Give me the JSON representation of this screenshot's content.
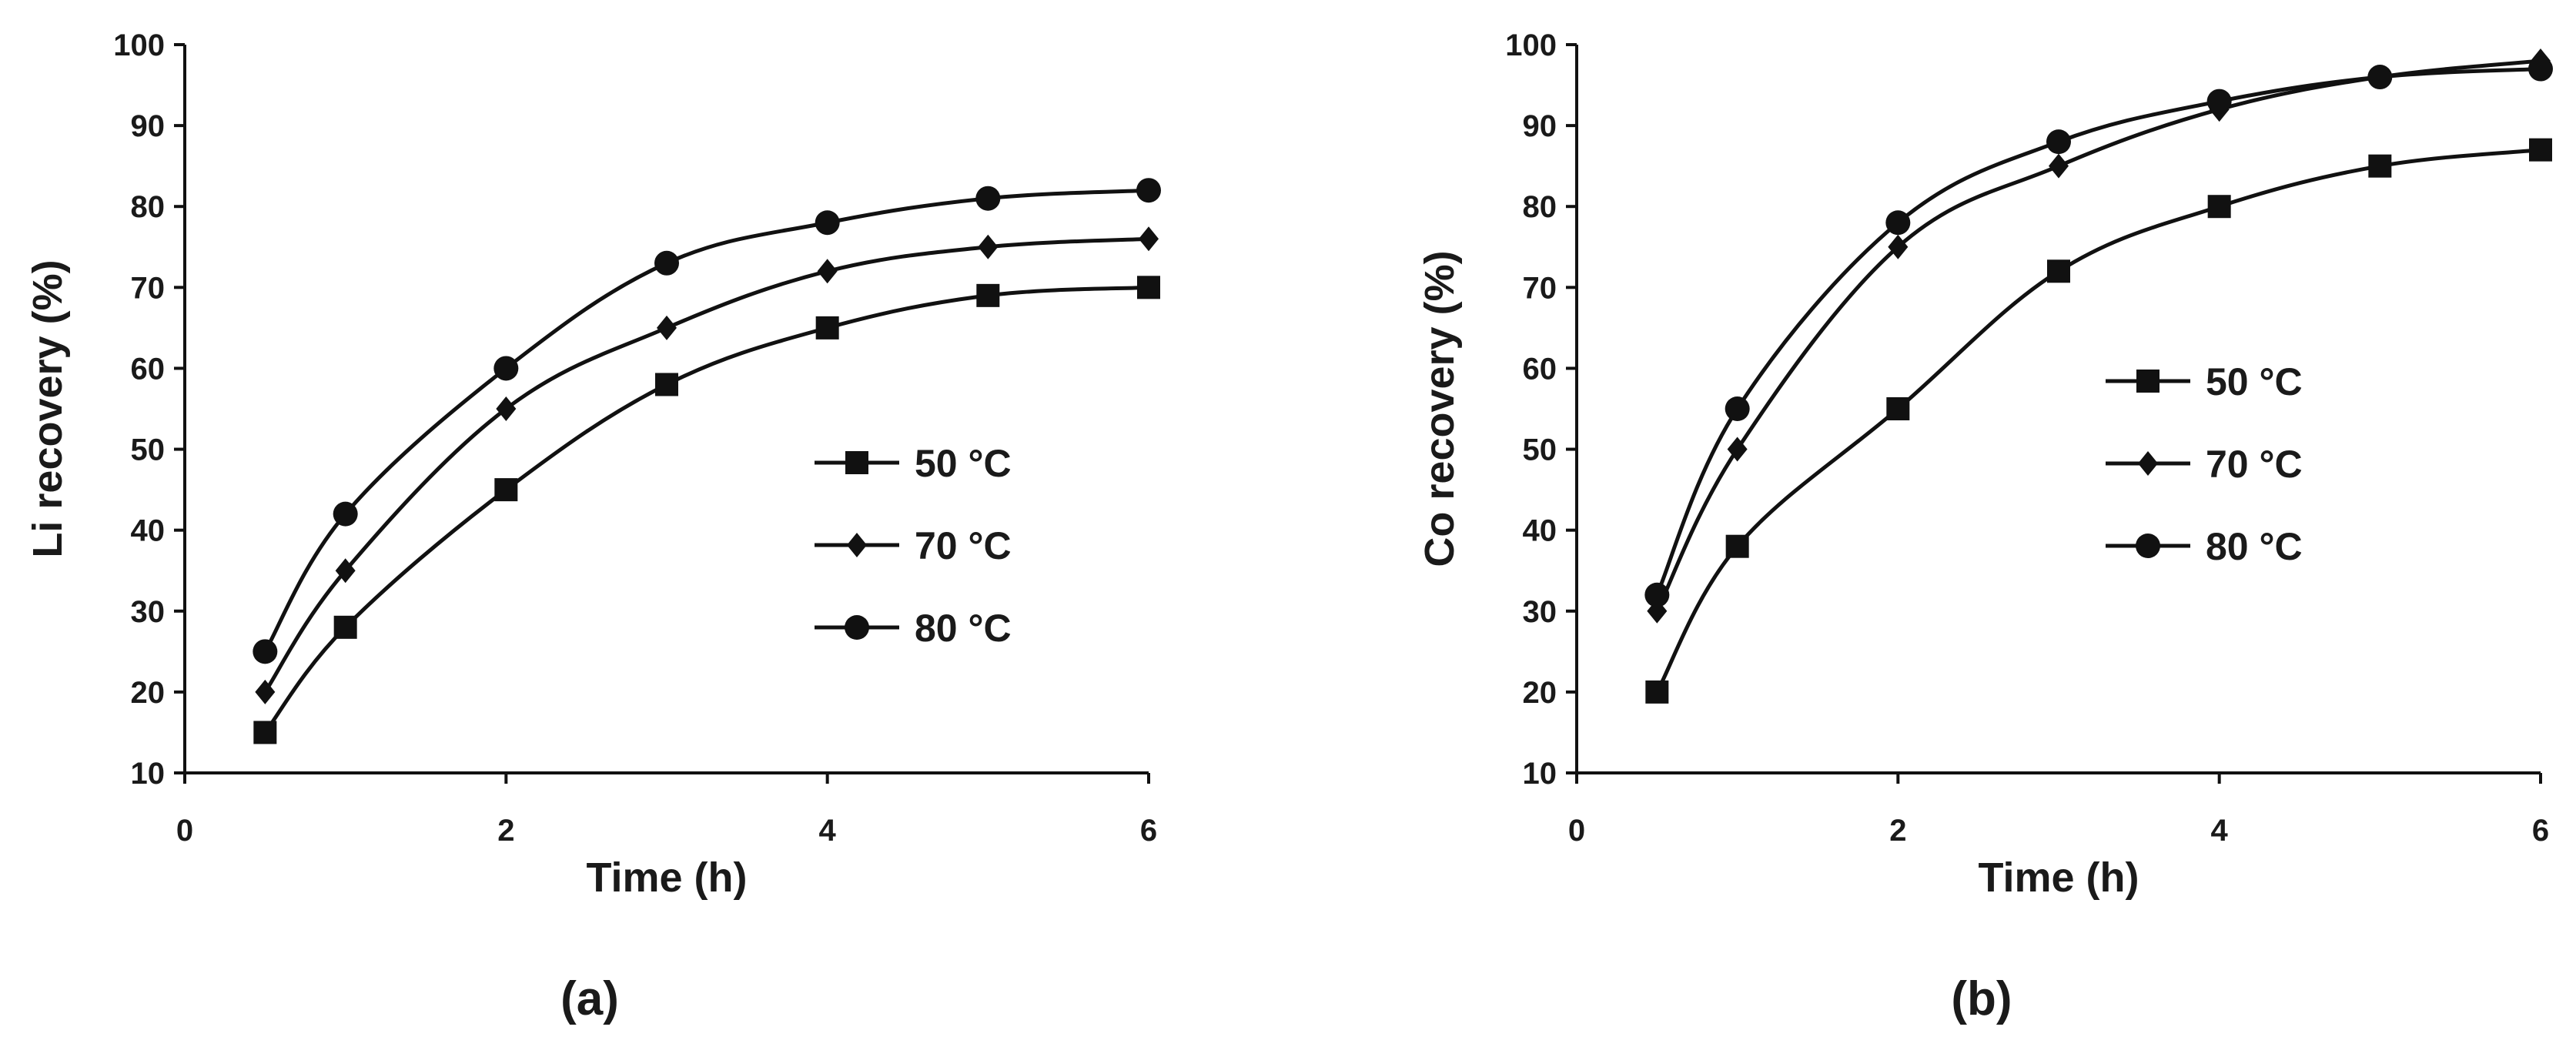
{
  "chart_data": [
    {
      "type": "line",
      "panel_label": "(a)",
      "xlabel": "Time (h)",
      "ylabel": "Li recovery (%)",
      "xlim": [
        0,
        6
      ],
      "ylim": [
        10,
        100
      ],
      "xticks": [
        0,
        2,
        4,
        6
      ],
      "yticks": [
        10,
        20,
        30,
        40,
        50,
        60,
        70,
        80,
        90,
        100
      ],
      "legend_position": "center-right",
      "x": [
        0.5,
        1,
        2,
        3,
        4,
        5,
        6
      ],
      "series": [
        {
          "name": "50 °C",
          "marker": "square",
          "values": [
            15,
            28,
            45,
            58,
            65,
            69,
            70
          ]
        },
        {
          "name": "70 °C",
          "marker": "diamond",
          "values": [
            20,
            35,
            55,
            65,
            72,
            75,
            76
          ]
        },
        {
          "name": "80 °C",
          "marker": "circle",
          "values": [
            25,
            42,
            60,
            73,
            78,
            81,
            82
          ]
        }
      ]
    },
    {
      "type": "line",
      "panel_label": "(b)",
      "xlabel": "Time (h)",
      "ylabel": "Co recovery (%)",
      "xlim": [
        0,
        6
      ],
      "ylim": [
        10,
        100
      ],
      "xticks": [
        0,
        2,
        4,
        6
      ],
      "yticks": [
        10,
        20,
        30,
        40,
        50,
        60,
        70,
        80,
        90,
        100
      ],
      "legend_position": "center",
      "x": [
        0.5,
        1,
        2,
        3,
        4,
        5,
        6
      ],
      "series": [
        {
          "name": "50 °C",
          "marker": "square",
          "values": [
            20,
            38,
            55,
            72,
            80,
            85,
            87
          ]
        },
        {
          "name": "70 °C",
          "marker": "diamond",
          "values": [
            30,
            50,
            75,
            85,
            92,
            96,
            98
          ]
        },
        {
          "name": "80 °C",
          "marker": "circle",
          "values": [
            32,
            55,
            78,
            88,
            93,
            96,
            97
          ]
        }
      ]
    }
  ]
}
